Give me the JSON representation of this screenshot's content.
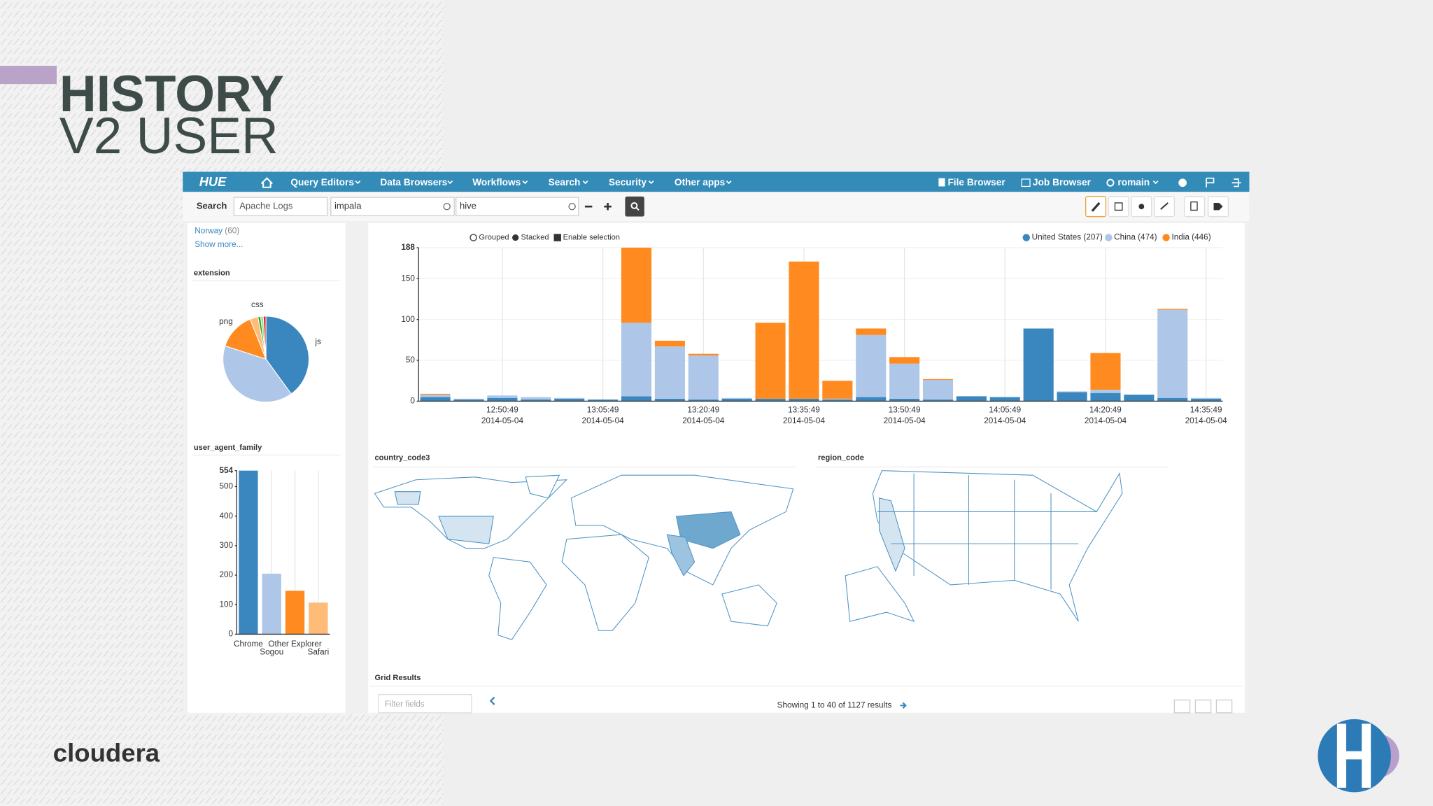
{
  "slide": {
    "title_line1": "HISTORY",
    "title_line2": "V2 USER",
    "logo": "cloudera"
  },
  "navbar": {
    "brand": "HUE",
    "menus": [
      "Query Editors",
      "Data Browsers",
      "Workflows",
      "Search",
      "Security",
      "Other apps"
    ],
    "right": [
      "File Browser",
      "Job Browser",
      "romain"
    ]
  },
  "search_bar": {
    "label": "Search",
    "collection": "Apache Logs",
    "queries": [
      "impala",
      "hive"
    ]
  },
  "sidebar": {
    "facet_item": {
      "label": "Norway",
      "count": "(60)"
    },
    "show_more": "Show more...",
    "facet_titles": [
      "extension",
      "user_agent_family"
    ]
  },
  "chart_options": [
    "Grouped",
    "Stacked",
    "Enable selection"
  ],
  "maps": {
    "titles": [
      "country_code3",
      "region_code"
    ]
  },
  "grid": {
    "title": "Grid Results",
    "filter_placeholder": "Filter fields",
    "status": "Showing 1 to 40 of 1127 results"
  },
  "chart_data": [
    {
      "type": "bar",
      "stacked": true,
      "grid": true,
      "categories": [
        null,
        null,
        "12:50:49",
        null,
        null,
        "13:05:49",
        null,
        null,
        "13:20:49",
        null,
        null,
        "13:35:49",
        null,
        null,
        "13:50:49",
        null,
        null,
        "14:05:49",
        null,
        null,
        "14:20:49",
        null,
        null,
        "14:35:49"
      ],
      "category_dates": [
        null,
        null,
        "2014-05-04",
        null,
        null,
        "2014-05-04",
        null,
        null,
        "2014-05-04",
        null,
        null,
        "2014-05-04",
        null,
        null,
        "2014-05-04",
        null,
        null,
        "2014-05-04",
        null,
        null,
        "2014-05-04",
        null,
        null,
        "2014-05-04"
      ],
      "series": [
        {
          "name": "United States (207)",
          "color": "#3a87c0",
          "values": [
            5,
            2,
            4,
            2,
            3,
            2,
            6,
            3,
            2,
            3,
            3,
            3,
            2,
            5,
            3,
            2,
            6,
            5,
            89,
            11,
            10,
            8,
            4,
            3
          ]
        },
        {
          "name": "China (474)",
          "color": "#aec7e8",
          "values": [
            3,
            1,
            3,
            3,
            1,
            0,
            90,
            64,
            54,
            1,
            0,
            0,
            1,
            76,
            43,
            24,
            0,
            0,
            0,
            1,
            4,
            0,
            108,
            1
          ]
        },
        {
          "name": "India (446)",
          "color": "#ff8a1f",
          "values": [
            1,
            0,
            0,
            0,
            0,
            0,
            92,
            7,
            2,
            0,
            93,
            168,
            22,
            8,
            8,
            1,
            0,
            0,
            0,
            0,
            45,
            0,
            1,
            0
          ]
        }
      ],
      "ylim": [
        0,
        188
      ],
      "yticks": [
        0,
        50,
        100,
        150,
        188
      ]
    },
    {
      "type": "pie",
      "categories": [
        "js",
        null,
        "png",
        null,
        "css",
        null,
        null
      ],
      "values": [
        40,
        40,
        14,
        3,
        1,
        1,
        1
      ],
      "colors": [
        "#3a87c0",
        "#aec7e8",
        "#ff8a1f",
        "#ffbb78",
        "#2ca02c",
        "#98df8a",
        "#d62728"
      ]
    },
    {
      "type": "bar",
      "grid": true,
      "categories": [
        "Chrome",
        "Sogou",
        "Other Explorer",
        "Safari"
      ],
      "values": [
        554,
        205,
        147,
        107
      ],
      "colors": [
        "#3a87c0",
        "#aec7e8",
        "#ff8a1f",
        "#ffbb78"
      ],
      "ylim": [
        0,
        554
      ],
      "yticks": [
        0,
        100,
        200,
        300,
        400,
        500,
        554
      ]
    }
  ]
}
